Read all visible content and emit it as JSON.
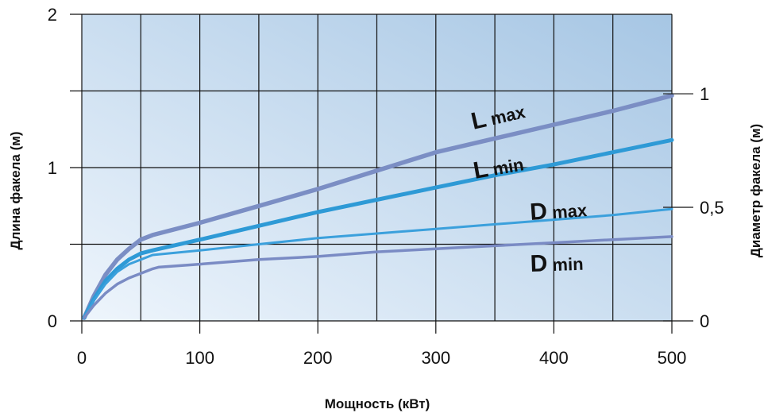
{
  "chart_data": {
    "type": "line",
    "xlabel": "Мощность (кВт)",
    "ylabel": "Длина факела (м)",
    "ylabel_right": "Диаметр факела (м)",
    "xlim": [
      0,
      500
    ],
    "ylim": [
      0,
      2
    ],
    "ylim_right": [
      0,
      1.35
    ],
    "x_ticks": [
      0,
      100,
      200,
      300,
      400,
      500
    ],
    "x_tick_labels": [
      "0",
      "100",
      "200",
      "300",
      "400",
      "500"
    ],
    "y_ticks": [
      0,
      1,
      2
    ],
    "y_tick_labels": [
      "0",
      "1",
      "2"
    ],
    "y_right_ticks": [
      0,
      0.5,
      1
    ],
    "y_right_tick_labels": [
      "0",
      "0,5",
      "1"
    ],
    "grid": true,
    "colors": {
      "lmax": "#7b8ec4",
      "lmin": "#2e9ad6",
      "dmax": "#3ba0dc",
      "dmin": "#7a8bc4",
      "bg_light": "#eaf3fb",
      "bg_dark": "#a9c9e6",
      "grid": "#111111"
    },
    "series": [
      {
        "name": "L max",
        "axis": "left",
        "color": "#7b8ec4",
        "x": [
          2,
          10,
          20,
          30,
          40,
          50,
          60,
          100,
          150,
          200,
          250,
          300,
          350,
          400,
          450,
          500
        ],
        "y": [
          0.02,
          0.16,
          0.3,
          0.4,
          0.47,
          0.53,
          0.56,
          0.64,
          0.75,
          0.86,
          0.98,
          1.1,
          1.19,
          1.28,
          1.37,
          1.47
        ]
      },
      {
        "name": "L min",
        "axis": "left",
        "color": "#2e9ad6",
        "x": [
          2,
          10,
          20,
          30,
          40,
          50,
          60,
          100,
          150,
          200,
          250,
          300,
          350,
          400,
          450,
          500
        ],
        "y": [
          0.02,
          0.14,
          0.26,
          0.34,
          0.4,
          0.44,
          0.46,
          0.53,
          0.62,
          0.71,
          0.79,
          0.87,
          0.95,
          1.02,
          1.1,
          1.18
        ]
      },
      {
        "name": "D max",
        "axis": "left",
        "color": "#3ba0dc",
        "x": [
          2,
          10,
          20,
          30,
          40,
          50,
          60,
          100,
          150,
          200,
          250,
          300,
          350,
          400,
          450,
          500
        ],
        "y": [
          0.02,
          0.13,
          0.24,
          0.32,
          0.37,
          0.4,
          0.43,
          0.46,
          0.5,
          0.54,
          0.57,
          0.6,
          0.63,
          0.66,
          0.69,
          0.73
        ]
      },
      {
        "name": "D min",
        "axis": "left",
        "color": "#7a8bc4",
        "x": [
          2,
          10,
          20,
          30,
          40,
          50,
          60,
          65,
          100,
          150,
          200,
          250,
          300,
          350,
          400,
          450,
          500
        ],
        "y": [
          0.02,
          0.1,
          0.18,
          0.24,
          0.28,
          0.31,
          0.34,
          0.35,
          0.37,
          0.4,
          0.42,
          0.45,
          0.47,
          0.49,
          0.51,
          0.53,
          0.55
        ]
      }
    ],
    "series_labels": [
      {
        "text_main": "L",
        "text_sub": "max",
        "series": "L max"
      },
      {
        "text_main": "L",
        "text_sub": "min",
        "series": "L min"
      },
      {
        "text_main": "D",
        "text_sub": "max",
        "series": "D max"
      },
      {
        "text_main": "D",
        "text_sub": "min",
        "series": "D min"
      }
    ]
  }
}
